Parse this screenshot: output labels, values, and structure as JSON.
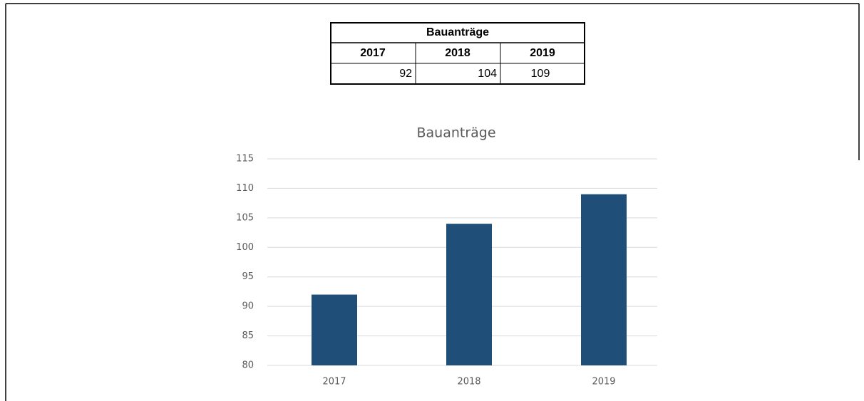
{
  "table": {
    "title": "Bauanträge",
    "header": [
      "2017",
      "2018",
      "2019"
    ],
    "rows": [
      [
        "92",
        "104",
        "109"
      ]
    ]
  },
  "chart_data": {
    "type": "bar",
    "title": "Bauanträge",
    "categories": [
      "2017",
      "2018",
      "2019"
    ],
    "values": [
      92,
      104,
      109
    ],
    "color": "#1f4e79",
    "ylim": [
      80,
      115
    ],
    "yticks": [
      80,
      85,
      90,
      95,
      100,
      105,
      110,
      115
    ],
    "grid": true
  }
}
